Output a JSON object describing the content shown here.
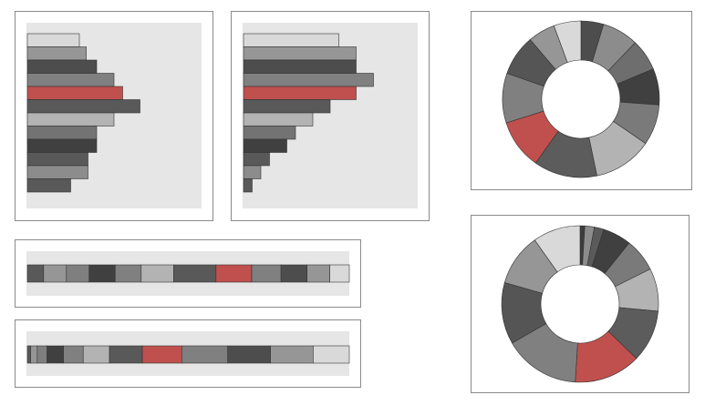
{
  "colors": {
    "highlight": "#c0504d",
    "plot_background": "#e6e6e6",
    "panel_border": "#8a8a8a",
    "stroke": "#333333"
  },
  "chart_data": [
    {
      "type": "bar",
      "orientation": "horizontal",
      "series": [
        {
          "values": [
            30,
            34,
            40,
            50,
            55,
            65,
            50,
            40,
            40,
            35,
            35,
            25
          ],
          "colors": [
            "#d9d9d9",
            "#969696",
            "#4d4d4d",
            "#808080",
            "#c0504d",
            "#595959",
            "#b3b3b3",
            "#737373",
            "#404040",
            "#595959",
            "#8c8c8c",
            "#595959"
          ]
        }
      ],
      "xlim": [
        0,
        100
      ],
      "highlight_index": 4
    },
    {
      "type": "bar",
      "orientation": "horizontal",
      "series": [
        {
          "values": [
            55,
            65,
            65,
            75,
            65,
            50,
            40,
            30,
            25,
            15,
            10,
            5
          ],
          "colors": [
            "#d9d9d9",
            "#969696",
            "#4d4d4d",
            "#808080",
            "#c0504d",
            "#595959",
            "#b3b3b3",
            "#737373",
            "#404040",
            "#595959",
            "#8c8c8c",
            "#595959"
          ]
        }
      ],
      "xlim": [
        0,
        100
      ],
      "highlight_index": 4
    },
    {
      "type": "bar",
      "orientation": "stacked-horizontal",
      "series": [
        {
          "values": [
            5,
            7,
            7,
            8,
            8,
            10,
            13,
            11,
            9,
            8,
            7,
            6
          ],
          "colors": [
            "#595959",
            "#969696",
            "#7f7f7f",
            "#404040",
            "#808080",
            "#b3b3b3",
            "#595959",
            "#c0504d",
            "#808080",
            "#4d4d4d",
            "#969696",
            "#d9d9d9"
          ]
        }
      ],
      "highlight_index": 7
    },
    {
      "type": "bar",
      "orientation": "stacked-horizontal",
      "series": [
        {
          "values": [
            1,
            2,
            3,
            5,
            6,
            8,
            10,
            12,
            14,
            13,
            13,
            11
          ],
          "colors": [
            "#595959",
            "#969696",
            "#7f7f7f",
            "#404040",
            "#808080",
            "#b3b3b3",
            "#595959",
            "#c0504d",
            "#808080",
            "#4d4d4d",
            "#969696",
            "#d9d9d9"
          ]
        }
      ],
      "highlight_index": 7
    },
    {
      "type": "pie",
      "style": "donut",
      "slices": [
        5,
        8,
        7,
        8,
        9,
        13,
        14,
        11,
        11,
        9,
        6,
        6
      ],
      "colors": [
        "#4d4d4d",
        "#8c8c8c",
        "#6e6e6e",
        "#404040",
        "#7a7a7a",
        "#b3b3b3",
        "#5c5c5c",
        "#c0504d",
        "#808080",
        "#555555",
        "#969696",
        "#d9d9d9"
      ],
      "highlight_index": 7
    },
    {
      "type": "pie",
      "style": "donut",
      "slices": [
        1,
        2,
        2,
        6,
        7,
        9,
        11,
        14,
        16,
        13,
        11,
        10
      ],
      "colors": [
        "#3c3c3c",
        "#8c8c8c",
        "#5a5a5a",
        "#404040",
        "#7a7a7a",
        "#b3b3b3",
        "#5c5c5c",
        "#c0504d",
        "#808080",
        "#555555",
        "#969696",
        "#d9d9d9"
      ],
      "highlight_index": 7
    }
  ]
}
